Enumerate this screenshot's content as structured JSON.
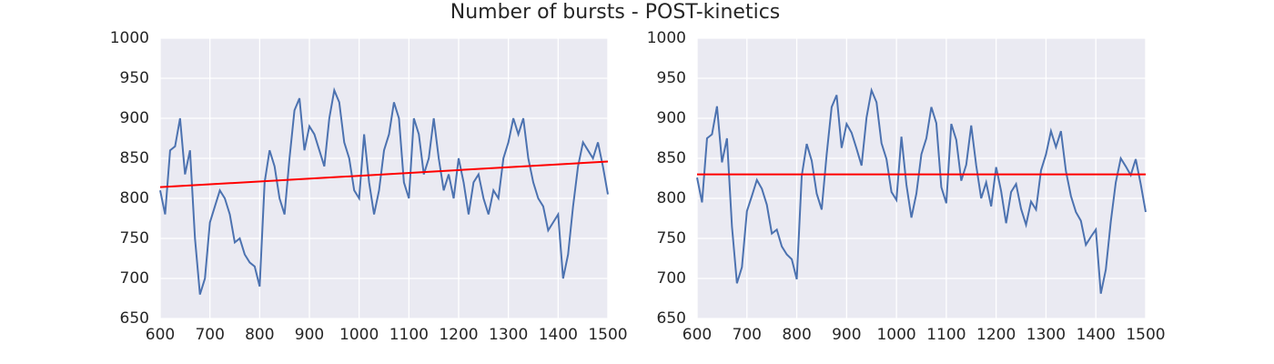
{
  "title": "Number of bursts - POST-kinetics",
  "chart_data": [
    {
      "type": "line",
      "x": [
        600,
        610,
        620,
        630,
        640,
        650,
        660,
        670,
        680,
        690,
        700,
        710,
        720,
        730,
        740,
        750,
        760,
        770,
        780,
        790,
        800,
        810,
        820,
        830,
        840,
        850,
        860,
        870,
        880,
        890,
        900,
        910,
        920,
        930,
        940,
        950,
        960,
        970,
        980,
        990,
        1000,
        1010,
        1020,
        1030,
        1040,
        1050,
        1060,
        1070,
        1080,
        1090,
        1100,
        1110,
        1120,
        1130,
        1140,
        1150,
        1160,
        1170,
        1180,
        1190,
        1200,
        1210,
        1220,
        1230,
        1240,
        1250,
        1260,
        1270,
        1280,
        1290,
        1300,
        1310,
        1320,
        1330,
        1340,
        1350,
        1360,
        1370,
        1380,
        1390,
        1400,
        1410,
        1420,
        1430,
        1440,
        1450,
        1460,
        1470,
        1480,
        1490,
        1500
      ],
      "series": [
        {
          "color": "#4c72b0",
          "values": [
            810,
            780,
            860,
            865,
            900,
            830,
            860,
            750,
            680,
            700,
            770,
            790,
            810,
            800,
            780,
            745,
            750,
            730,
            720,
            715,
            690,
            820,
            860,
            840,
            800,
            780,
            850,
            910,
            925,
            860,
            890,
            880,
            860,
            840,
            900,
            935,
            920,
            870,
            850,
            810,
            800,
            880,
            820,
            780,
            810,
            860,
            880,
            920,
            900,
            820,
            800,
            900,
            880,
            830,
            850,
            900,
            850,
            810,
            830,
            800,
            850,
            820,
            780,
            820,
            830,
            800,
            780,
            810,
            800,
            850,
            870,
            900,
            880,
            900,
            850,
            820,
            800,
            790,
            760,
            770,
            780,
            700,
            730,
            790,
            840,
            870,
            860,
            850,
            870,
            840,
            805
          ]
        },
        {
          "color": "#ff0000",
          "x": [
            600,
            1500
          ],
          "values": [
            814,
            846
          ]
        }
      ],
      "xlim": [
        600,
        1500
      ],
      "xticks": [
        600,
        700,
        800,
        900,
        1000,
        1100,
        1200,
        1300,
        1400,
        1500
      ],
      "ylim": [
        650,
        1000
      ],
      "yticks": [
        650,
        700,
        750,
        800,
        850,
        900,
        950,
        1000
      ],
      "grid": true
    },
    {
      "type": "line",
      "x": [
        600,
        610,
        620,
        630,
        640,
        650,
        660,
        670,
        680,
        690,
        700,
        710,
        720,
        730,
        740,
        750,
        760,
        770,
        780,
        790,
        800,
        810,
        820,
        830,
        840,
        850,
        860,
        870,
        880,
        890,
        900,
        910,
        920,
        930,
        940,
        950,
        960,
        970,
        980,
        990,
        1000,
        1010,
        1020,
        1030,
        1040,
        1050,
        1060,
        1070,
        1080,
        1090,
        1100,
        1110,
        1120,
        1130,
        1140,
        1150,
        1160,
        1170,
        1180,
        1190,
        1200,
        1210,
        1220,
        1230,
        1240,
        1250,
        1260,
        1270,
        1280,
        1290,
        1300,
        1310,
        1320,
        1330,
        1340,
        1350,
        1360,
        1370,
        1380,
        1390,
        1400,
        1410,
        1420,
        1430,
        1440,
        1450,
        1460,
        1470,
        1480,
        1490,
        1500
      ],
      "series": [
        {
          "color": "#4c72b0",
          "values": [
            826,
            795,
            875,
            880,
            915,
            845,
            875,
            765,
            694,
            714,
            784,
            803,
            823,
            812,
            792,
            756,
            761,
            740,
            730,
            724,
            699,
            828,
            868,
            847,
            806,
            786,
            855,
            914,
            929,
            863,
            893,
            882,
            862,
            841,
            901,
            935,
            920,
            869,
            849,
            808,
            798,
            877,
            817,
            776,
            806,
            855,
            875,
            914,
            894,
            814,
            794,
            893,
            873,
            822,
            842,
            891,
            841,
            800,
            820,
            790,
            839,
            809,
            769,
            808,
            818,
            787,
            767,
            796,
            786,
            835,
            855,
            884,
            864,
            884,
            834,
            803,
            783,
            772,
            742,
            752,
            761,
            681,
            711,
            771,
            820,
            850,
            840,
            829,
            849,
            818,
            783
          ]
        },
        {
          "color": "#ff0000",
          "x": [
            600,
            1500
          ],
          "values": [
            830,
            830
          ]
        }
      ],
      "xlim": [
        600,
        1500
      ],
      "xticks": [
        600,
        700,
        800,
        900,
        1000,
        1100,
        1200,
        1300,
        1400,
        1500
      ],
      "ylim": [
        650,
        1000
      ],
      "yticks": [
        650,
        700,
        750,
        800,
        850,
        900,
        950,
        1000
      ],
      "grid": true
    }
  ]
}
